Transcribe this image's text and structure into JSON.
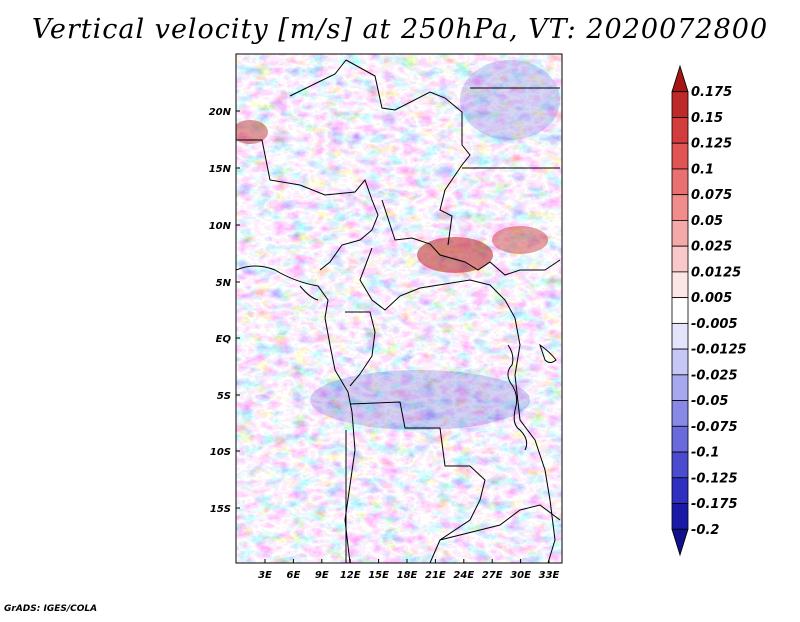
{
  "title": "Vertical velocity [m/s] at 250hPa, VT: 2020072800",
  "credit": "GrADS: IGES/COLA",
  "map": {
    "lat_labels": [
      "20N",
      "15N",
      "10N",
      "5N",
      "EQ",
      "5S",
      "10S",
      "15S"
    ],
    "lon_labels": [
      "3E",
      "6E",
      "9E",
      "12E",
      "15E",
      "18E",
      "21E",
      "24E",
      "27E",
      "30E",
      "33E"
    ],
    "field": "vertical velocity",
    "units": "m/s",
    "level": "250hPa"
  },
  "colorbar": {
    "labels": [
      "0.175",
      "0.15",
      "0.125",
      "0.1",
      "0.075",
      "0.05",
      "0.025",
      "0.0125",
      "0.005",
      "-0.005",
      "-0.0125",
      "-0.025",
      "-0.05",
      "-0.075",
      "-0.1",
      "-0.125",
      "-0.175",
      "-0.2"
    ],
    "colors": [
      "#a51515",
      "#be2a2a",
      "#d23c3c",
      "#e05454",
      "#e87070",
      "#f08c8c",
      "#f5aaaa",
      "#f9c8c8",
      "#fde6e6",
      "#ffffff",
      "#e4e4fb",
      "#c7c7f5",
      "#a8a8ee",
      "#8888e6",
      "#6a6adc",
      "#4c4cd0",
      "#2f2fc0",
      "#1a1aa6",
      "#10108a"
    ]
  }
}
